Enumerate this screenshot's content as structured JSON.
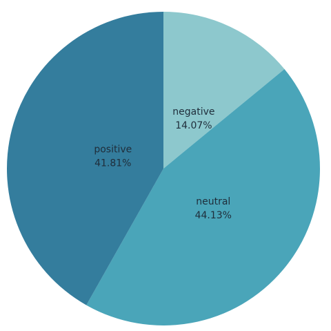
{
  "chart_data": {
    "type": "pie",
    "title": "",
    "slices": [
      {
        "label": "negative",
        "value": 14.07,
        "value_label": "14.07%",
        "color": "#8dc8cd"
      },
      {
        "label": "neutral",
        "value": 44.13,
        "value_label": "44.13%",
        "color": "#4aa5b9"
      },
      {
        "label": "positive",
        "value": 41.81,
        "value_label": "41.81%",
        "color": "#347d9d"
      }
    ],
    "start_angle": "12 o'clock",
    "direction": "clockwise",
    "legend": "none"
  }
}
